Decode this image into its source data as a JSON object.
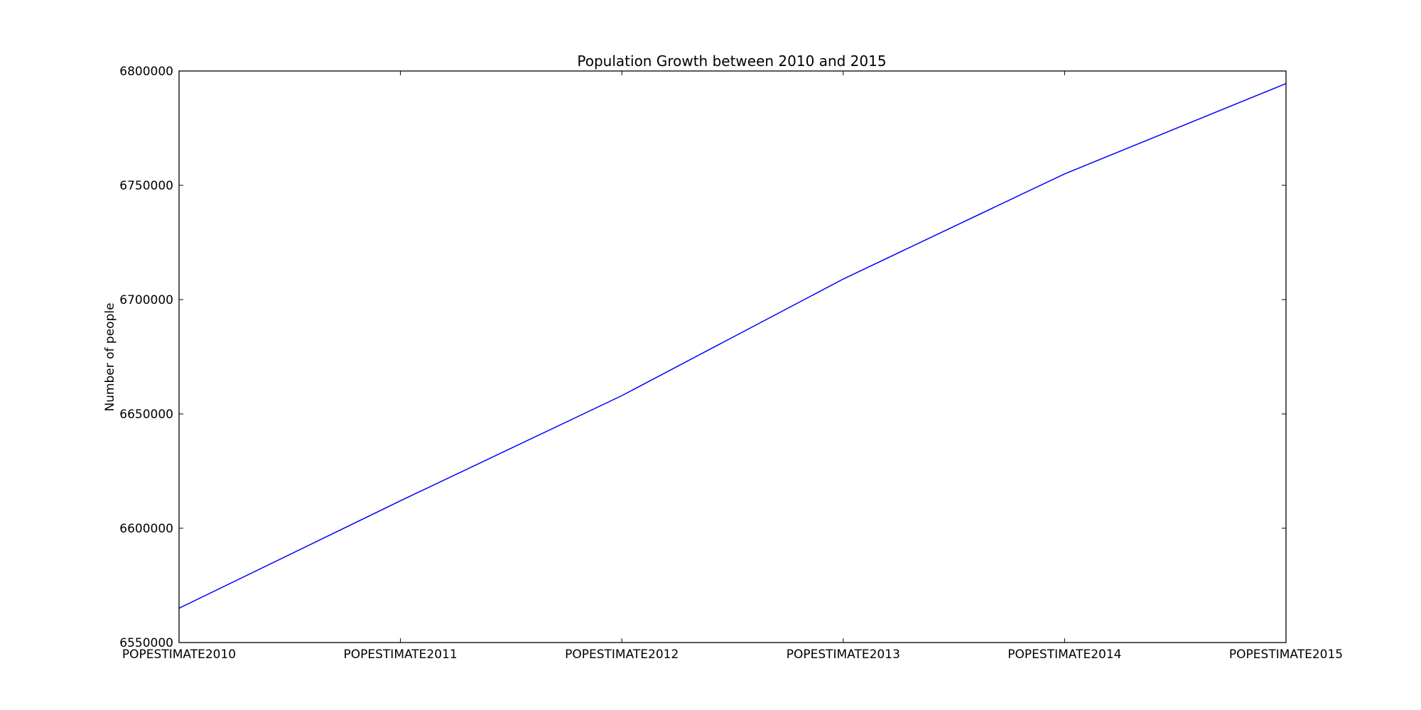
{
  "chart_data": {
    "type": "line",
    "title": "Population Growth between 2010 and 2015",
    "xlabel": "",
    "ylabel": "Number of people",
    "categories": [
      "POPESTIMATE2010",
      "POPESTIMATE2011",
      "POPESTIMATE2012",
      "POPESTIMATE2013",
      "POPESTIMATE2014",
      "POPESTIMATE2015"
    ],
    "series": [
      {
        "values": [
          6565000,
          6612000,
          6658000,
          6709000,
          6755000,
          6794500
        ],
        "color": "#0000ff"
      }
    ],
    "ylim": [
      6550000,
      6800000
    ],
    "yticks": [
      "6550000",
      "6600000",
      "6650000",
      "6700000",
      "6750000",
      "6800000"
    ],
    "grid": false
  }
}
